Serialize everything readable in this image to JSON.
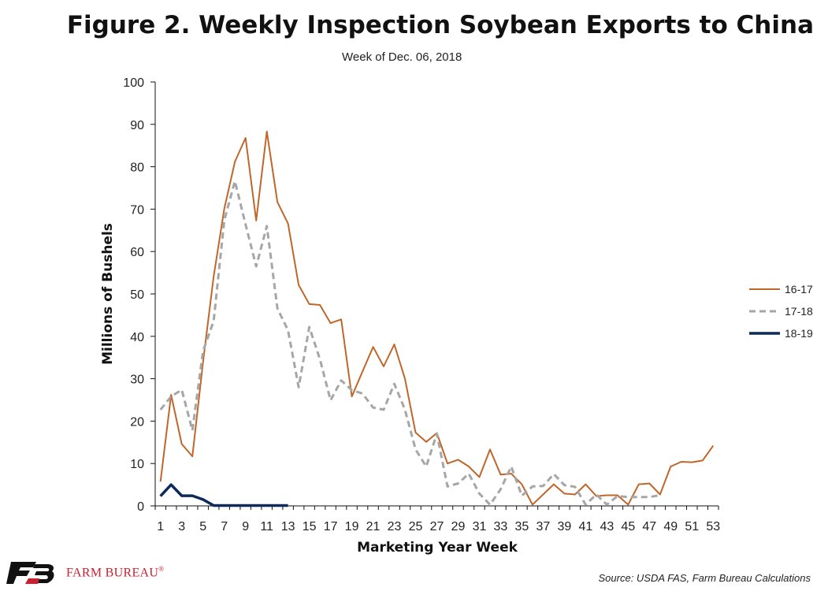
{
  "header": {
    "title": "Figure 2. Weekly Inspection Soybean Exports to China",
    "subtitle": "Week of Dec. 06, 2018"
  },
  "footer": {
    "brand": "FARM BUREAU",
    "brand_mark": "®",
    "source": "Source: USDA FAS, Farm Bureau Calculations"
  },
  "chart_data": {
    "type": "line",
    "xlabel": "Marketing Year Week",
    "ylabel": "Millions of Bushels",
    "ylim": [
      0,
      100
    ],
    "yticks": [
      0,
      10,
      20,
      30,
      40,
      50,
      60,
      70,
      80,
      90,
      100
    ],
    "xlim": [
      1,
      53
    ],
    "xticks": [
      1,
      3,
      5,
      7,
      9,
      11,
      13,
      15,
      17,
      19,
      21,
      23,
      25,
      27,
      29,
      31,
      33,
      35,
      37,
      39,
      41,
      43,
      45,
      47,
      49,
      51,
      53
    ],
    "grid": false,
    "legend_position": "right",
    "series": [
      {
        "name": "16-17",
        "color": "#c0662a",
        "dash": "solid",
        "x": [
          1,
          2,
          3,
          4,
          5,
          6,
          7,
          8,
          9,
          10,
          11,
          12,
          13,
          14,
          15,
          16,
          17,
          18,
          19,
          20,
          21,
          22,
          23,
          24,
          25,
          26,
          27,
          28,
          29,
          30,
          31,
          32,
          33,
          34,
          35,
          36,
          37,
          38,
          39,
          40,
          41,
          42,
          43,
          44,
          45,
          46,
          47,
          48,
          49,
          50,
          51,
          52,
          53
        ],
        "values": [
          5.7,
          26.2,
          14.6,
          11.7,
          33.9,
          54.1,
          70.1,
          81.2,
          86.8,
          67.3,
          88.3,
          71.7,
          66.6,
          52.1,
          47.6,
          47.4,
          43.1,
          44.0,
          25.8,
          31.7,
          37.5,
          32.9,
          38.1,
          30.0,
          17.3,
          15.1,
          17.2,
          10.0,
          10.9,
          9.3,
          6.8,
          13.3,
          7.4,
          7.6,
          5.1,
          0.3,
          2.7,
          5.1,
          2.9,
          2.7,
          5.1,
          2.3,
          2.5,
          2.5,
          0.3,
          5.1,
          5.3,
          2.7,
          9.3,
          10.4,
          10.3,
          10.7,
          14.2
        ]
      },
      {
        "name": "17-18",
        "color": "#a6a6a6",
        "dash": "dashed",
        "x": [
          1,
          2,
          3,
          4,
          5,
          6,
          7,
          8,
          9,
          10,
          11,
          12,
          13,
          14,
          15,
          16,
          17,
          18,
          19,
          20,
          21,
          22,
          23,
          24,
          25,
          26,
          27,
          28,
          29,
          30,
          31,
          32,
          33,
          34,
          35,
          36,
          37,
          38,
          39,
          40,
          41,
          42,
          43,
          44,
          45,
          46,
          47,
          48
        ],
        "values": [
          22.7,
          25.8,
          27.4,
          17.8,
          36.5,
          43.6,
          67.4,
          76.6,
          66.4,
          56.5,
          66.0,
          46.6,
          41.4,
          28.0,
          42.2,
          34.6,
          24.9,
          29.6,
          27.3,
          26.5,
          23.2,
          22.7,
          28.8,
          22.7,
          13.3,
          9.3,
          17.0,
          4.6,
          5.3,
          7.6,
          2.9,
          0.3,
          3.9,
          9.3,
          2.4,
          4.6,
          4.7,
          7.5,
          4.9,
          4.5,
          0.3,
          2.7,
          0.3,
          2.3,
          2.1,
          2.1,
          2.1,
          2.5
        ]
      },
      {
        "name": "18-19",
        "color": "#0c2a5a",
        "dash": "solid",
        "x": [
          1,
          2,
          3,
          4,
          5,
          6,
          7,
          8,
          9,
          10,
          11,
          12,
          13
        ],
        "values": [
          2.3,
          5.0,
          2.4,
          2.4,
          1.5,
          0.1,
          0.1,
          0.1,
          0.1,
          0.1,
          0.1,
          0.1,
          0.1
        ]
      }
    ]
  }
}
